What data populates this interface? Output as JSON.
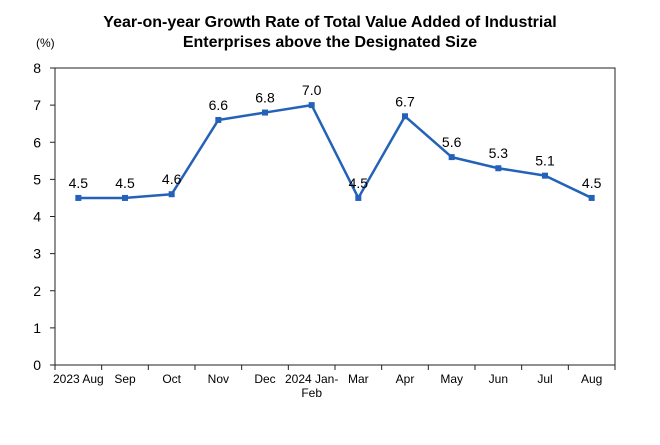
{
  "chart_data": {
    "type": "line",
    "title": [
      "Year-on-year Growth Rate of Total Value Added of Industrial",
      "Enterprises above the Designated Size"
    ],
    "ylabel": "(%)",
    "xlabel": "",
    "ylim": [
      0,
      8
    ],
    "yticks": [
      "0",
      "1",
      "2",
      "3",
      "4",
      "5",
      "6",
      "7",
      "8"
    ],
    "grid": false,
    "categories": [
      [
        "2023 Aug"
      ],
      [
        "Sep"
      ],
      [
        "Oct"
      ],
      [
        "Nov"
      ],
      [
        "Dec"
      ],
      [
        "2024 Jan-",
        "Feb"
      ],
      [
        "Mar"
      ],
      [
        "Apr"
      ],
      [
        "May"
      ],
      [
        "Jun"
      ],
      [
        "Jul"
      ],
      [
        "Aug"
      ]
    ],
    "series": [
      {
        "values": [
          4.5,
          4.5,
          4.6,
          6.6,
          6.8,
          7.0,
          4.5,
          6.7,
          5.6,
          5.3,
          5.1,
          4.5
        ],
        "labels": [
          "4.5",
          "4.5",
          "4.6",
          "6.6",
          "6.8",
          "7.0",
          "4.5",
          "6.7",
          "5.6",
          "5.3",
          "5.1",
          "4.5"
        ],
        "color": "#2461b8"
      }
    ]
  }
}
